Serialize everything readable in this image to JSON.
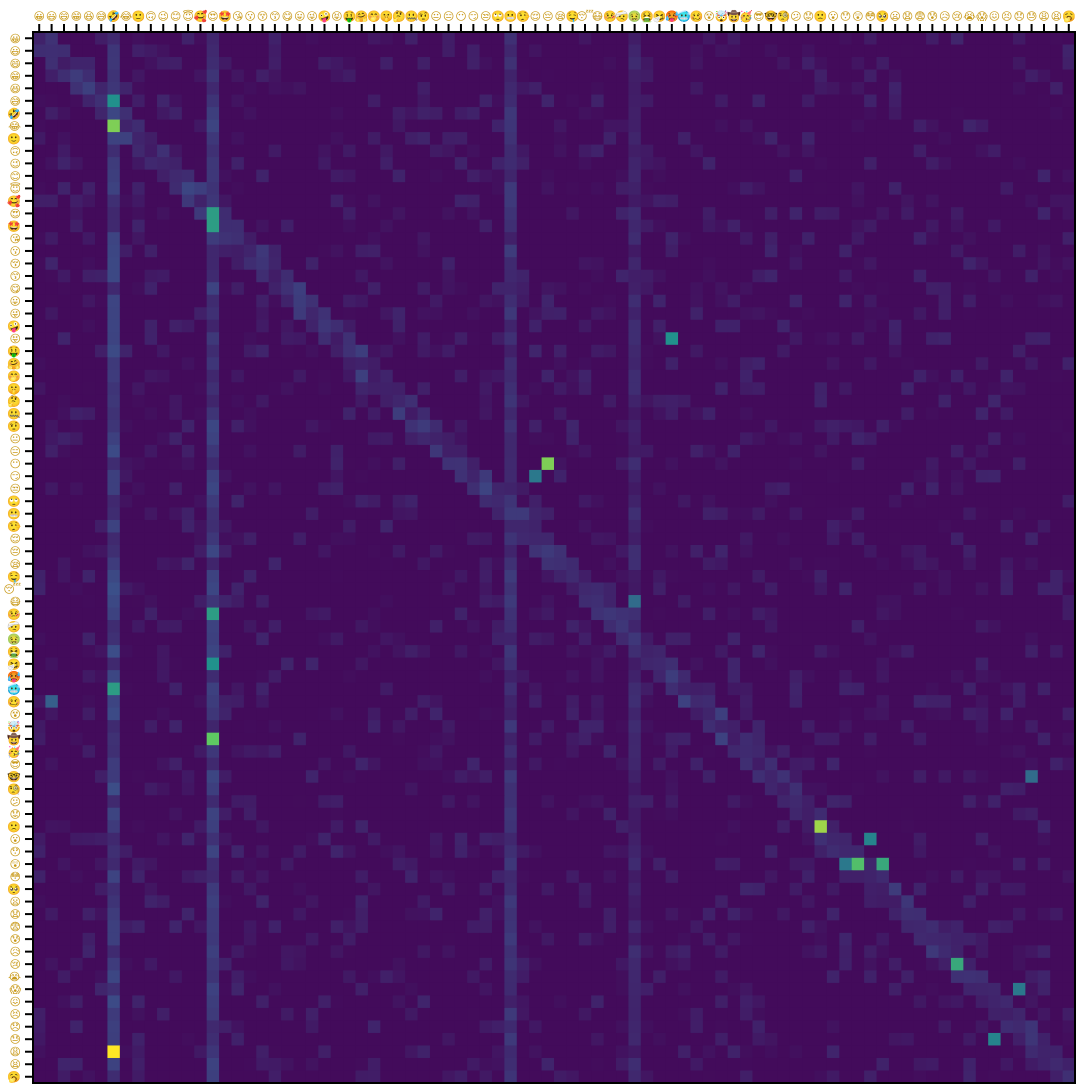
{
  "chart_data": {
    "type": "heatmap",
    "n": 84,
    "label_icon": "emoji-face-icon",
    "colormap": "viridis",
    "colorbar": false,
    "gridlines": false,
    "x_tick_labels_position": "top",
    "y_tick_labels_position": "left",
    "tick_labels": [
      "😀",
      "😃",
      "😄",
      "😁",
      "😆",
      "😅",
      "🤣",
      "😂",
      "🙂",
      "🙃",
      "😉",
      "😊",
      "😇",
      "🥰",
      "😍",
      "🤩",
      "😘",
      "😗",
      "😚",
      "😙",
      "😋",
      "😛",
      "😜",
      "🤪",
      "😝",
      "🤑",
      "🤗",
      "🤭",
      "🤫",
      "🤔",
      "🤐",
      "🤨",
      "😐",
      "😑",
      "😶",
      "😏",
      "😒",
      "🙄",
      "😬",
      "🤥",
      "😌",
      "😔",
      "😪",
      "🤤",
      "😴",
      "😷",
      "🤒",
      "🤕",
      "🤢",
      "🤮",
      "🤧",
      "🥵",
      "🥶",
      "🥴",
      "😵",
      "🤯",
      "🤠",
      "🥳",
      "😎",
      "🤓",
      "🧐",
      "😕",
      "😟",
      "🙁",
      "😮",
      "😯",
      "😲",
      "😳",
      "🥺",
      "😦",
      "😧",
      "😨",
      "😰",
      "😥",
      "😢",
      "😭",
      "😱",
      "😖",
      "😣",
      "😞",
      "😓",
      "😩",
      "😫",
      "🥱"
    ],
    "value_range": [
      0,
      1
    ],
    "background_value": 0.03,
    "highlights": [
      {
        "row": 5,
        "col": 6,
        "value": 0.5
      },
      {
        "row": 7,
        "col": 6,
        "value": 0.8
      },
      {
        "row": 14,
        "col": 14,
        "value": 0.55
      },
      {
        "row": 15,
        "col": 14,
        "value": 0.55
      },
      {
        "row": 24,
        "col": 51,
        "value": 0.5
      },
      {
        "row": 34,
        "col": 41,
        "value": 0.8
      },
      {
        "row": 35,
        "col": 40,
        "value": 0.4
      },
      {
        "row": 46,
        "col": 14,
        "value": 0.55
      },
      {
        "row": 50,
        "col": 14,
        "value": 0.5
      },
      {
        "row": 52,
        "col": 6,
        "value": 0.55
      },
      {
        "row": 56,
        "col": 14,
        "value": 0.75
      },
      {
        "row": 63,
        "col": 63,
        "value": 0.85
      },
      {
        "row": 64,
        "col": 67,
        "value": 0.45
      },
      {
        "row": 66,
        "col": 66,
        "value": 0.7
      },
      {
        "row": 66,
        "col": 68,
        "value": 0.6
      },
      {
        "row": 66,
        "col": 65,
        "value": 0.4
      },
      {
        "row": 74,
        "col": 74,
        "value": 0.6
      },
      {
        "row": 76,
        "col": 79,
        "value": 0.4
      },
      {
        "row": 81,
        "col": 6,
        "value": 1.0
      },
      {
        "row": 80,
        "col": 77,
        "value": 0.45
      },
      {
        "row": 45,
        "col": 48,
        "value": 0.35
      },
      {
        "row": 53,
        "col": 1,
        "value": 0.3
      },
      {
        "row": 59,
        "col": 80,
        "value": 0.35
      }
    ],
    "column_bands": [
      {
        "col": 6,
        "value": 0.2
      },
      {
        "col": 14,
        "value": 0.18
      },
      {
        "col": 38,
        "value": 0.15
      },
      {
        "col": 48,
        "value": 0.12
      }
    ]
  }
}
